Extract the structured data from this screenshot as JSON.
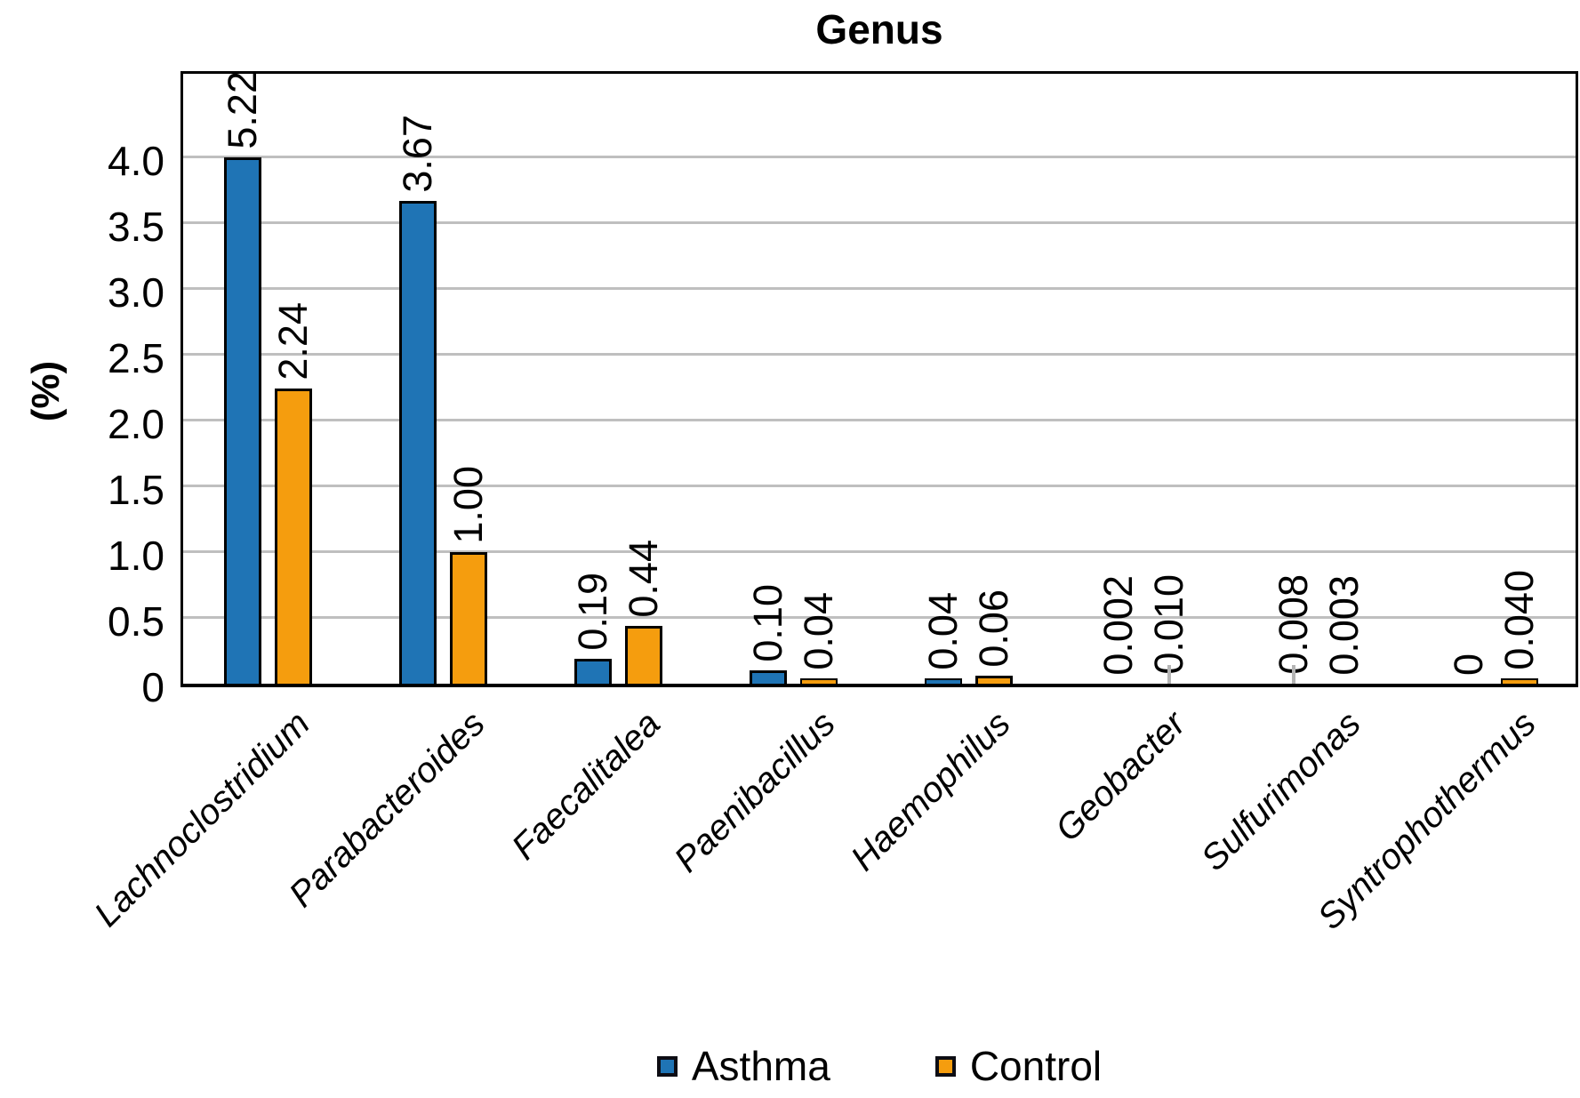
{
  "title": "Genus",
  "chart_data": {
    "type": "bar",
    "title": "Genus",
    "xlabel": "",
    "ylabel": "(%)",
    "ylim": [
      0,
      4.0
    ],
    "bar_clip_max": 4.0,
    "grid": true,
    "legend_position": "bottom",
    "yticks": [
      0,
      0.5,
      1.0,
      1.5,
      2.0,
      2.5,
      3.0,
      3.5,
      4.0
    ],
    "ytick_labels": [
      "0",
      "0.5",
      "1.0",
      "1.5",
      "2.0",
      "2.5",
      "3.0",
      "3.5",
      "4.0"
    ],
    "categories": [
      "Lachnoclostridium",
      "Parabacteroides",
      "Faecalitalea",
      "Paenibacillus",
      "Haemophilus",
      "Geobacter",
      "Sulfurimonas",
      "Syntrophothermus"
    ],
    "series": [
      {
        "name": "Asthma",
        "color": "#1F74B5",
        "values": [
          5.22,
          3.67,
          0.19,
          0.1,
          0.04,
          0.002,
          0.008,
          0
        ],
        "labels": [
          "5.22",
          "3.67",
          "0.19",
          "0.10",
          "0.04",
          "0.002",
          "0.008",
          "0"
        ]
      },
      {
        "name": "Control",
        "color": "#F59D0E",
        "values": [
          2.24,
          1.0,
          0.44,
          0.04,
          0.06,
          0.01,
          0.003,
          0.04
        ],
        "labels": [
          "2.24",
          "1.00",
          "0.44",
          "0.04",
          "0.06",
          "0.010",
          "0.003",
          "0.040"
        ]
      }
    ],
    "whisker_marks": [
      {
        "series_index": 1,
        "category_index": 5,
        "color": "#b5b5b5"
      },
      {
        "series_index": 0,
        "category_index": 6,
        "color": "#b5b5b5"
      }
    ],
    "gridline_color": "#bfbfbf",
    "axis_color": "#000000"
  }
}
